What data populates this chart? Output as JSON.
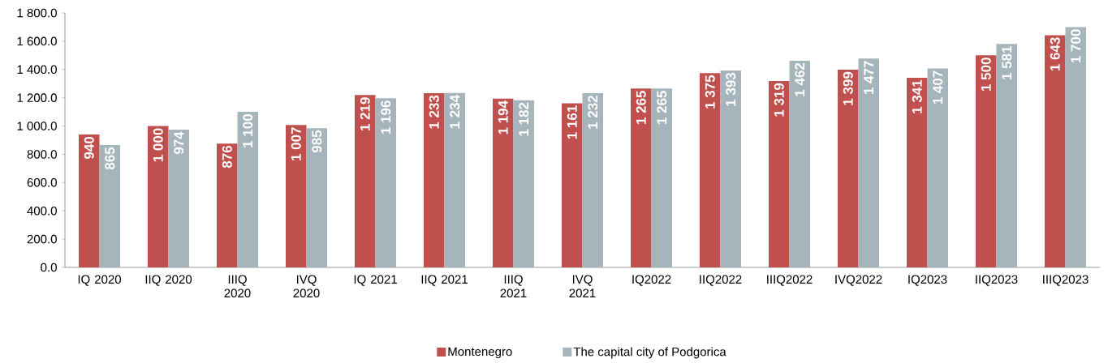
{
  "chart_data": {
    "type": "bar",
    "categories": [
      "IQ 2020",
      "IIQ 2020",
      "IIIQ 2020",
      "IVQ 2020",
      "IQ 2021",
      "IIQ 2021",
      "IIIQ 2021",
      "IVQ 2021",
      "IQ2022",
      "IIQ2022",
      "IIIQ2022",
      "IVQ2022",
      "IQ2023",
      "IIQ2023",
      "IIIQ2023"
    ],
    "series": [
      {
        "name": "Montenegro",
        "color": "#c0504d",
        "values": [
          940,
          1000,
          876,
          1007,
          1219,
          1233,
          1194,
          1161,
          1265,
          1375,
          1319,
          1399,
          1341,
          1500,
          1643
        ],
        "value_labels": [
          "940",
          "1 000",
          "876",
          "1 007",
          "1 219",
          "1 233",
          "1 194",
          "1 161",
          "1 265",
          "1 375",
          "1 319",
          "1 399",
          "1 341",
          "1 500",
          "1 643"
        ]
      },
      {
        "name": "The capital city of Podgorica",
        "color": "#a5b5bb",
        "values": [
          865,
          974,
          1100,
          985,
          1196,
          1234,
          1182,
          1232,
          1265,
          1393,
          1462,
          1477,
          1407,
          1581,
          1700
        ],
        "value_labels": [
          "865",
          "974",
          "1 100",
          "985",
          "1 196",
          "1 234",
          "1 182",
          "1 232",
          "1 265",
          "1 393",
          "1 462",
          "1 477",
          "1 407",
          "1 581",
          "1 700"
        ]
      }
    ],
    "ylim": [
      0,
      1800
    ],
    "yticks": [
      {
        "value": 0,
        "label": "0.0"
      },
      {
        "value": 200,
        "label": "200.0"
      },
      {
        "value": 400,
        "label": "400.0"
      },
      {
        "value": 600,
        "label": "600.0"
      },
      {
        "value": 800,
        "label": "800.0"
      },
      {
        "value": 1000,
        "label": "1 000.0"
      },
      {
        "value": 1200,
        "label": "1 200.0"
      },
      {
        "value": 1400,
        "label": "1 400.0"
      },
      {
        "value": 1600,
        "label": "1 600.0"
      },
      {
        "value": 1800,
        "label": "1 800.0"
      }
    ],
    "grid": false,
    "legend": "bottom"
  }
}
